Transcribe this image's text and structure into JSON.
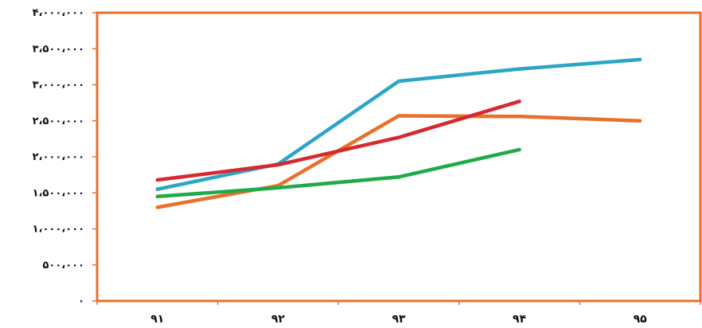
{
  "chart_data": {
    "type": "line",
    "categories": [
      "۹۱",
      "۹۲",
      "۹۳",
      "۹۴",
      "۹۵"
    ],
    "y_tick_labels": [
      "۰",
      "۵۰۰،۰۰۰",
      "۱،۰۰۰،۰۰۰",
      "۱،۵۰۰،۰۰۰",
      "۲،۰۰۰،۰۰۰",
      "۲،۵۰۰،۰۰۰",
      "۳،۰۰۰،۰۰۰",
      "۳،۵۰۰،۰۰۰",
      "۴،۰۰۰،۰۰۰"
    ],
    "ylim": [
      0,
      4000000
    ],
    "y_step": 500000,
    "grid": false,
    "legend": "none",
    "colors": {
      "plot_border": "#E8702A",
      "axis": "#E8702A"
    },
    "series": [
      {
        "color": "#2DA5C4",
        "values": [
          1550000,
          1900000,
          3050000,
          3220000,
          3350000
        ]
      },
      {
        "color": "#E8702A",
        "values": [
          1300000,
          1600000,
          2570000,
          2560000,
          2500000
        ]
      },
      {
        "color": "#D7282F",
        "values": [
          1680000,
          1890000,
          2270000,
          2770000,
          null
        ]
      },
      {
        "color": "#1FAA4A",
        "values": [
          1450000,
          1570000,
          1720000,
          2100000,
          null
        ]
      }
    ]
  }
}
